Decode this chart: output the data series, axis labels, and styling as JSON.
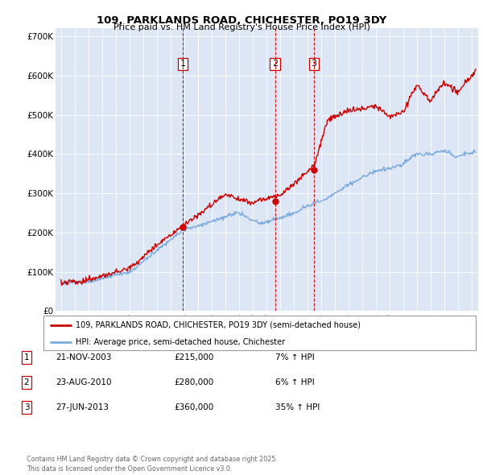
{
  "title": "109, PARKLANDS ROAD, CHICHESTER, PO19 3DY",
  "subtitle": "Price paid vs. HM Land Registry's House Price Index (HPI)",
  "background_color": "#e8eef8",
  "plot_bg_color": "#dde6f4",
  "ylim": [
    0,
    720000
  ],
  "yticks": [
    0,
    100000,
    200000,
    300000,
    400000,
    500000,
    600000,
    700000
  ],
  "ytick_labels": [
    "£0",
    "£100K",
    "£200K",
    "£300K",
    "£400K",
    "£500K",
    "£600K",
    "£700K"
  ],
  "sale_dates": [
    2003.9,
    2010.65,
    2013.5
  ],
  "sale_prices": [
    215000,
    280000,
    360000
  ],
  "sale_labels": [
    "1",
    "2",
    "3"
  ],
  "legend_line1": "109, PARKLANDS ROAD, CHICHESTER, PO19 3DY (semi-detached house)",
  "legend_line2": "HPI: Average price, semi-detached house, Chichester",
  "table_data": [
    {
      "num": "1",
      "date": "21-NOV-2003",
      "price": "£215,000",
      "hpi": "7% ↑ HPI"
    },
    {
      "num": "2",
      "date": "23-AUG-2010",
      "price": "£280,000",
      "hpi": "6% ↑ HPI"
    },
    {
      "num": "3",
      "date": "27-JUN-2013",
      "price": "£360,000",
      "hpi": "35% ↑ HPI"
    }
  ],
  "footnote": "Contains HM Land Registry data © Crown copyright and database right 2025.\nThis data is licensed under the Open Government Licence v3.0.",
  "red_color": "#cc0000",
  "blue_color": "#7aaadd",
  "dashed_color": "#cc0000",
  "grid_color": "#ffffff"
}
